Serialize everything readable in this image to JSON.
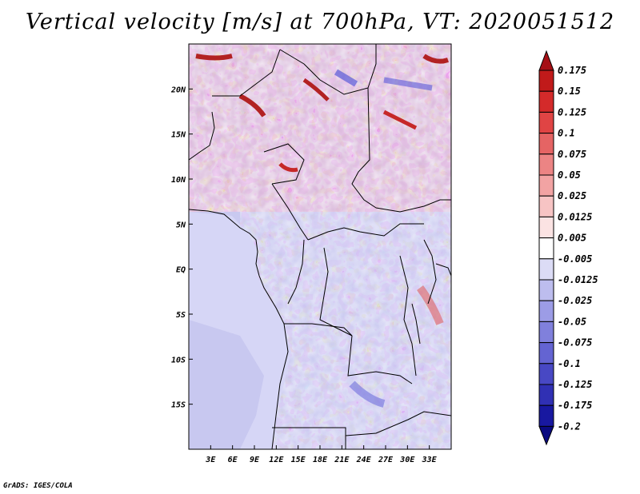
{
  "title": "Vertical velocity [m/s] at 700hPa, VT: 2020051512",
  "credit": "GrADS: IGES/COLA",
  "map": {
    "region": "Central Africa",
    "lon_range": [
      0,
      36
    ],
    "lat_range": [
      -20,
      25
    ],
    "x_ticks": [
      "3E",
      "6E",
      "9E",
      "12E",
      "15E",
      "18E",
      "21E",
      "24E",
      "27E",
      "30E",
      "33E"
    ],
    "y_ticks": [
      "20N",
      "15N",
      "10N",
      "5N",
      "EQ",
      "5S",
      "10S",
      "15S"
    ]
  },
  "colorbar": {
    "labels": [
      "0.175",
      "0.15",
      "0.125",
      "0.1",
      "0.075",
      "0.05",
      "0.025",
      "0.0125",
      "0.005",
      "-0.005",
      "-0.0125",
      "-0.025",
      "-0.05",
      "-0.075",
      "-0.1",
      "-0.125",
      "-0.175",
      "-0.2"
    ],
    "colors": [
      "#a50f15",
      "#c11a1a",
      "#d42a2a",
      "#e04444",
      "#e56464",
      "#ec8484",
      "#f2a3a3",
      "#f7c4c4",
      "#fbe3e3",
      "#ffffff",
      "#dcdcf6",
      "#bdbdee",
      "#9c9ce6",
      "#8080dc",
      "#6464d2",
      "#4848c4",
      "#3030b4",
      "#1818a0",
      "#0a0a80"
    ]
  }
}
